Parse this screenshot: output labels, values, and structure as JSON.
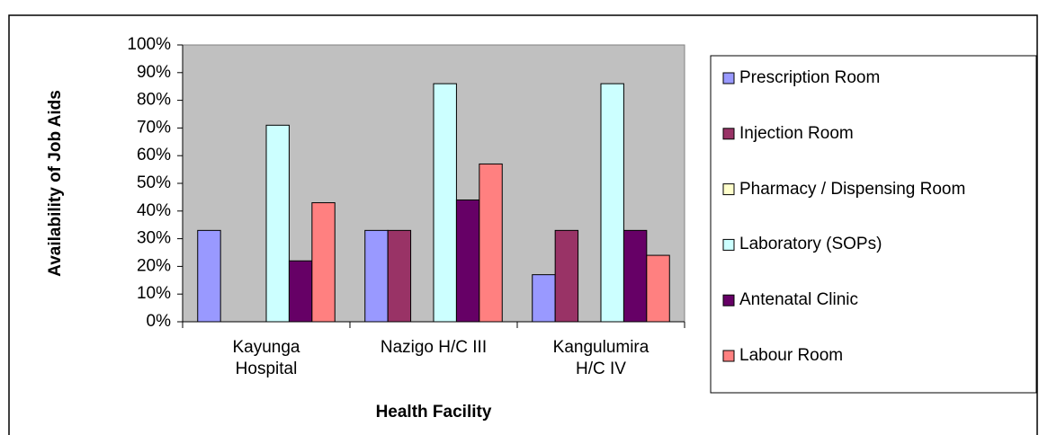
{
  "chart_data": {
    "type": "bar",
    "xlabel": "Health Facility",
    "ylabel": "Availability of Job Aids",
    "categories": [
      "Kayunga Hospital",
      "Nazigo H/C III",
      "Kangulumira H/C IV"
    ],
    "series": [
      {
        "name": "Prescription Room",
        "color": "#9999ff",
        "values": [
          33,
          33,
          17
        ]
      },
      {
        "name": "Injection Room",
        "color": "#993366",
        "values": [
          0,
          33,
          33
        ]
      },
      {
        "name": "Pharmacy / Dispensing Room",
        "color": "#ffffcc",
        "values": [
          0,
          0,
          0
        ]
      },
      {
        "name": "Laboratory (SOPs)",
        "color": "#ccffff",
        "values": [
          71,
          86,
          86
        ]
      },
      {
        "name": "Antenatal Clinic",
        "color": "#660066",
        "values": [
          22,
          44,
          33
        ]
      },
      {
        "name": "Labour Room",
        "color": "#ff8080",
        "values": [
          43,
          57,
          24
        ]
      }
    ],
    "ylim": [
      0,
      100
    ],
    "yticks": [
      {
        "value": 0,
        "label": "0%"
      },
      {
        "value": 10,
        "label": "10%"
      },
      {
        "value": 20,
        "label": "20%"
      },
      {
        "value": 30,
        "label": "30%"
      },
      {
        "value": 40,
        "label": "40%"
      },
      {
        "value": 50,
        "label": "50%"
      },
      {
        "value": 60,
        "label": "60%"
      },
      {
        "value": 70,
        "label": "70%"
      },
      {
        "value": 80,
        "label": "80%"
      },
      {
        "value": 90,
        "label": "90%"
      },
      {
        "value": 100,
        "label": "100%"
      }
    ],
    "legend": "right",
    "plot_background": "#c0c0c0"
  }
}
